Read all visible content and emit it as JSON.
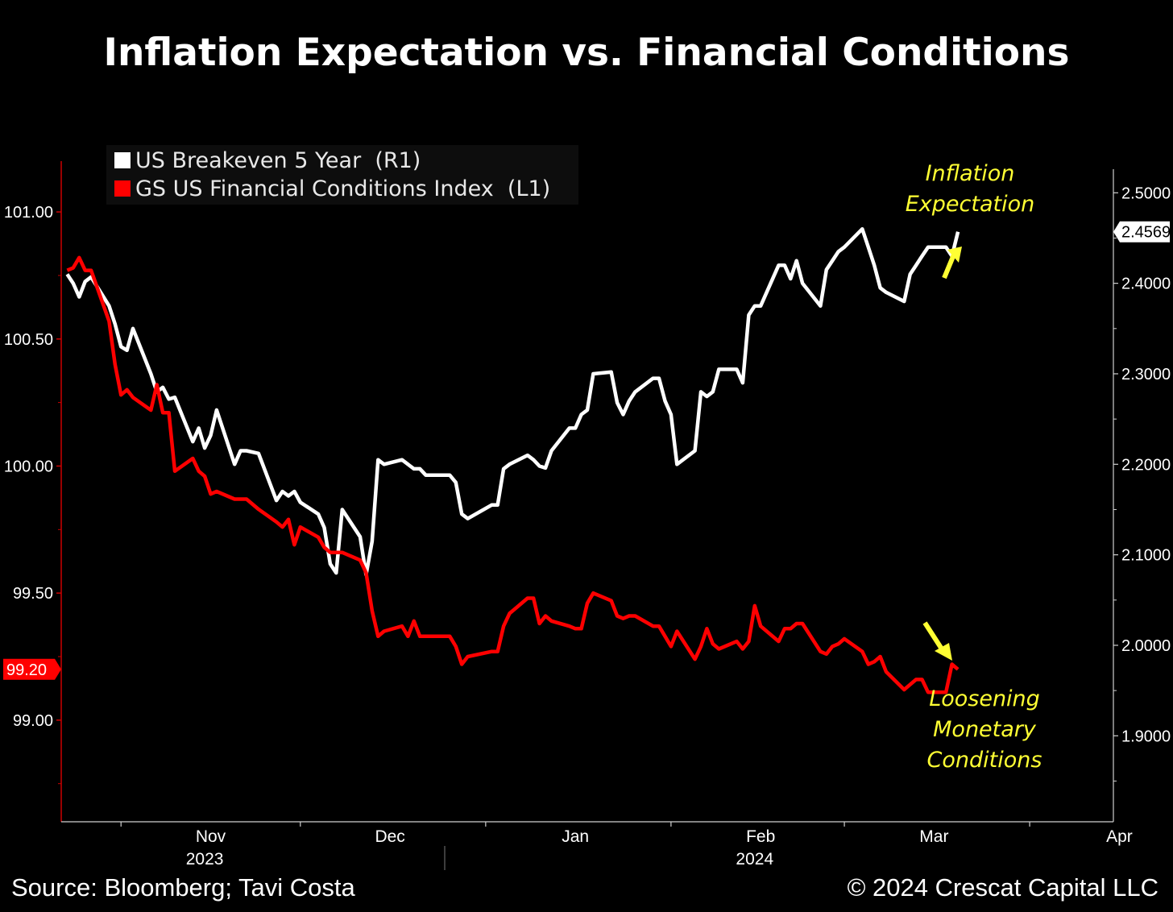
{
  "title": "Inflation Expectation vs. Financial Conditions",
  "footer": {
    "source": "Source: Bloomberg; Tavi Costa",
    "copyright": "© 2024 Crescat Capital LLC"
  },
  "annotations": {
    "inflation_line1": "Inflation",
    "inflation_line2": "Expectation",
    "loosening_line1": "Loosening",
    "loosening_line2": "Monetary",
    "loosening_line3": "Conditions"
  },
  "colors": {
    "background": "#000000",
    "breakeven": "#ffffff",
    "fci": "#ff0000",
    "annotation": "#ffff33",
    "axis": "#cc0000"
  },
  "chart_data": {
    "type": "line",
    "title": "Inflation Expectation vs. Financial Conditions",
    "x_range": [
      "2023-10-22",
      "2024-04-15"
    ],
    "x_month_ticks": [
      {
        "label": "Nov",
        "date": "2023-11-01"
      },
      {
        "label": "Dec",
        "date": "2023-12-01"
      },
      {
        "label": "Jan",
        "date": "2024-01-01"
      },
      {
        "label": "Feb",
        "date": "2024-02-01"
      },
      {
        "label": "Mar",
        "date": "2024-03-01"
      },
      {
        "label": "Apr",
        "date": "2024-04-01"
      }
    ],
    "x_year_labels": [
      {
        "label": "2023",
        "date": "2023-11-15"
      },
      {
        "label": "2024",
        "date": "2024-02-15"
      }
    ],
    "left_axis": {
      "ylim": [
        98.6,
        101.2
      ],
      "ticks": [
        "101.00",
        "100.50",
        "100.00",
        "99.50",
        "99.00"
      ],
      "last_value_label": "99.20"
    },
    "right_axis": {
      "ylim": [
        1.805,
        2.535
      ],
      "ticks": [
        "2.5000",
        "2.4000",
        "2.3000",
        "2.2000",
        "2.1000",
        "2.0000",
        "1.9000"
      ],
      "last_value_label": "2.4569"
    },
    "legend_placement": "top-left",
    "series": [
      {
        "name": "US Breakeven 5 Year  (R1)",
        "axis": "right",
        "color": "#ffffff",
        "points": [
          [
            "2023-10-23",
            2.41
          ],
          [
            "2023-10-24",
            2.4
          ],
          [
            "2023-10-25",
            2.385
          ],
          [
            "2023-10-26",
            2.402
          ],
          [
            "2023-10-27",
            2.407
          ],
          [
            "2023-10-30",
            2.375
          ],
          [
            "2023-10-31",
            2.355
          ],
          [
            "2023-11-01",
            2.33
          ],
          [
            "2023-11-02",
            2.326
          ],
          [
            "2023-11-03",
            2.35
          ],
          [
            "2023-11-06",
            2.3
          ],
          [
            "2023-11-07",
            2.28
          ],
          [
            "2023-11-08",
            2.285
          ],
          [
            "2023-11-09",
            2.272
          ],
          [
            "2023-11-10",
            2.274
          ],
          [
            "2023-11-13",
            2.225
          ],
          [
            "2023-11-14",
            2.24
          ],
          [
            "2023-11-15",
            2.218
          ],
          [
            "2023-11-16",
            2.232
          ],
          [
            "2023-11-17",
            2.26
          ],
          [
            "2023-11-20",
            2.2
          ],
          [
            "2023-11-21",
            2.215
          ],
          [
            "2023-11-22",
            2.215
          ],
          [
            "2023-11-24",
            2.212
          ],
          [
            "2023-11-27",
            2.16
          ],
          [
            "2023-11-28",
            2.17
          ],
          [
            "2023-11-29",
            2.165
          ],
          [
            "2023-11-30",
            2.17
          ],
          [
            "2023-12-01",
            2.158
          ],
          [
            "2023-12-04",
            2.145
          ],
          [
            "2023-12-05",
            2.13
          ],
          [
            "2023-12-06",
            2.09
          ],
          [
            "2023-12-07",
            2.08
          ],
          [
            "2023-12-08",
            2.15
          ],
          [
            "2023-12-11",
            2.12
          ],
          [
            "2023-12-12",
            2.078
          ],
          [
            "2023-12-13",
            2.115
          ],
          [
            "2023-12-14",
            2.205
          ],
          [
            "2023-12-15",
            2.2
          ],
          [
            "2023-12-18",
            2.205
          ],
          [
            "2023-12-19",
            2.2
          ],
          [
            "2023-12-20",
            2.195
          ],
          [
            "2023-12-21",
            2.195
          ],
          [
            "2023-12-22",
            2.188
          ],
          [
            "2023-12-26",
            2.188
          ],
          [
            "2023-12-27",
            2.18
          ],
          [
            "2023-12-28",
            2.145
          ],
          [
            "2023-12-29",
            2.14
          ],
          [
            "2024-01-02",
            2.155
          ],
          [
            "2024-01-03",
            2.155
          ],
          [
            "2024-01-04",
            2.195
          ],
          [
            "2024-01-05",
            2.2
          ],
          [
            "2024-01-08",
            2.21
          ],
          [
            "2024-01-09",
            2.205
          ],
          [
            "2024-01-10",
            2.198
          ],
          [
            "2024-01-11",
            2.196
          ],
          [
            "2024-01-12",
            2.215
          ],
          [
            "2024-01-15",
            2.24
          ],
          [
            "2024-01-16",
            2.24
          ],
          [
            "2024-01-17",
            2.255
          ],
          [
            "2024-01-18",
            2.26
          ],
          [
            "2024-01-19",
            2.3
          ],
          [
            "2024-01-22",
            2.302
          ],
          [
            "2024-01-23",
            2.268
          ],
          [
            "2024-01-24",
            2.255
          ],
          [
            "2024-01-25",
            2.27
          ],
          [
            "2024-01-26",
            2.28
          ],
          [
            "2024-01-29",
            2.295
          ],
          [
            "2024-01-30",
            2.295
          ],
          [
            "2024-01-31",
            2.27
          ],
          [
            "2024-02-01",
            2.255
          ],
          [
            "2024-02-02",
            2.2
          ],
          [
            "2024-02-05",
            2.215
          ],
          [
            "2024-02-06",
            2.28
          ],
          [
            "2024-02-07",
            2.275
          ],
          [
            "2024-02-08",
            2.28
          ],
          [
            "2024-02-09",
            2.305
          ],
          [
            "2024-02-12",
            2.305
          ],
          [
            "2024-02-13",
            2.29
          ],
          [
            "2024-02-14",
            2.365
          ],
          [
            "2024-02-15",
            2.375
          ],
          [
            "2024-02-16",
            2.375
          ],
          [
            "2024-02-19",
            2.42
          ],
          [
            "2024-02-20",
            2.42
          ],
          [
            "2024-02-21",
            2.405
          ],
          [
            "2024-02-22",
            2.425
          ],
          [
            "2024-02-23",
            2.4
          ],
          [
            "2024-02-26",
            2.375
          ],
          [
            "2024-02-27",
            2.415
          ],
          [
            "2024-02-28",
            2.425
          ],
          [
            "2024-02-29",
            2.435
          ],
          [
            "2024-03-01",
            2.44
          ],
          [
            "2024-03-04",
            2.46
          ],
          [
            "2024-03-05",
            2.44
          ],
          [
            "2024-03-06",
            2.42
          ],
          [
            "2024-03-07",
            2.395
          ],
          [
            "2024-03-08",
            2.39
          ],
          [
            "2024-03-11",
            2.38
          ],
          [
            "2024-03-12",
            2.41
          ],
          [
            "2024-03-13",
            2.42
          ],
          [
            "2024-03-14",
            2.43
          ],
          [
            "2024-03-15",
            2.44
          ],
          [
            "2024-03-18",
            2.44
          ],
          [
            "2024-03-19",
            2.43
          ],
          [
            "2024-03-20",
            2.4569
          ]
        ]
      },
      {
        "name": "GS US Financial Conditions Index  (L1)",
        "axis": "left",
        "color": "#ff0000",
        "points": [
          [
            "2023-10-23",
            100.77
          ],
          [
            "2023-10-24",
            100.78
          ],
          [
            "2023-10-25",
            100.82
          ],
          [
            "2023-10-26",
            100.77
          ],
          [
            "2023-10-27",
            100.77
          ],
          [
            "2023-10-30",
            100.57
          ],
          [
            "2023-10-31",
            100.4
          ],
          [
            "2023-11-01",
            100.28
          ],
          [
            "2023-11-02",
            100.3
          ],
          [
            "2023-11-03",
            100.27
          ],
          [
            "2023-11-06",
            100.22
          ],
          [
            "2023-11-07",
            100.32
          ],
          [
            "2023-11-08",
            100.21
          ],
          [
            "2023-11-09",
            100.21
          ],
          [
            "2023-11-10",
            99.98
          ],
          [
            "2023-11-13",
            100.03
          ],
          [
            "2023-11-14",
            99.98
          ],
          [
            "2023-11-15",
            99.96
          ],
          [
            "2023-11-16",
            99.89
          ],
          [
            "2023-11-17",
            99.9
          ],
          [
            "2023-11-20",
            99.87
          ],
          [
            "2023-11-21",
            99.87
          ],
          [
            "2023-11-22",
            99.87
          ],
          [
            "2023-11-24",
            99.83
          ],
          [
            "2023-11-27",
            99.78
          ],
          [
            "2023-11-28",
            99.76
          ],
          [
            "2023-11-29",
            99.79
          ],
          [
            "2023-11-30",
            99.69
          ],
          [
            "2023-12-01",
            99.76
          ],
          [
            "2023-12-04",
            99.72
          ],
          [
            "2023-12-05",
            99.68
          ],
          [
            "2023-12-06",
            99.66
          ],
          [
            "2023-12-07",
            99.66
          ],
          [
            "2023-12-08",
            99.66
          ],
          [
            "2023-12-11",
            99.63
          ],
          [
            "2023-12-12",
            99.58
          ],
          [
            "2023-12-13",
            99.43
          ],
          [
            "2023-12-14",
            99.33
          ],
          [
            "2023-12-15",
            99.35
          ],
          [
            "2023-12-18",
            99.37
          ],
          [
            "2023-12-19",
            99.33
          ],
          [
            "2023-12-20",
            99.39
          ],
          [
            "2023-12-21",
            99.33
          ],
          [
            "2023-12-22",
            99.33
          ],
          [
            "2023-12-26",
            99.33
          ],
          [
            "2023-12-27",
            99.29
          ],
          [
            "2023-12-28",
            99.22
          ],
          [
            "2023-12-29",
            99.25
          ],
          [
            "2024-01-02",
            99.27
          ],
          [
            "2024-01-03",
            99.27
          ],
          [
            "2024-01-04",
            99.37
          ],
          [
            "2024-01-05",
            99.42
          ],
          [
            "2024-01-08",
            99.48
          ],
          [
            "2024-01-09",
            99.48
          ],
          [
            "2024-01-10",
            99.38
          ],
          [
            "2024-01-11",
            99.41
          ],
          [
            "2024-01-12",
            99.39
          ],
          [
            "2024-01-15",
            99.37
          ],
          [
            "2024-01-16",
            99.36
          ],
          [
            "2024-01-17",
            99.36
          ],
          [
            "2024-01-18",
            99.46
          ],
          [
            "2024-01-19",
            99.5
          ],
          [
            "2024-01-22",
            99.47
          ],
          [
            "2024-01-23",
            99.41
          ],
          [
            "2024-01-24",
            99.4
          ],
          [
            "2024-01-25",
            99.41
          ],
          [
            "2024-01-26",
            99.41
          ],
          [
            "2024-01-29",
            99.37
          ],
          [
            "2024-01-30",
            99.37
          ],
          [
            "2024-01-31",
            99.33
          ],
          [
            "2024-02-01",
            99.29
          ],
          [
            "2024-02-02",
            99.35
          ],
          [
            "2024-02-05",
            99.24
          ],
          [
            "2024-02-06",
            99.29
          ],
          [
            "2024-02-07",
            99.36
          ],
          [
            "2024-02-08",
            99.3
          ],
          [
            "2024-02-09",
            99.28
          ],
          [
            "2024-02-12",
            99.31
          ],
          [
            "2024-02-13",
            99.28
          ],
          [
            "2024-02-14",
            99.31
          ],
          [
            "2024-02-15",
            99.45
          ],
          [
            "2024-02-16",
            99.37
          ],
          [
            "2024-02-19",
            99.31
          ],
          [
            "2024-02-20",
            99.36
          ],
          [
            "2024-02-21",
            99.36
          ],
          [
            "2024-02-22",
            99.38
          ],
          [
            "2024-02-23",
            99.38
          ],
          [
            "2024-02-26",
            99.27
          ],
          [
            "2024-02-27",
            99.26
          ],
          [
            "2024-02-28",
            99.29
          ],
          [
            "2024-02-29",
            99.3
          ],
          [
            "2024-03-01",
            99.32
          ],
          [
            "2024-03-04",
            99.27
          ],
          [
            "2024-03-05",
            99.22
          ],
          [
            "2024-03-06",
            99.23
          ],
          [
            "2024-03-07",
            99.25
          ],
          [
            "2024-03-08",
            99.19
          ],
          [
            "2024-03-11",
            99.12
          ],
          [
            "2024-03-12",
            99.14
          ],
          [
            "2024-03-13",
            99.16
          ],
          [
            "2024-03-14",
            99.16
          ],
          [
            "2024-03-15",
            99.11
          ],
          [
            "2024-03-18",
            99.11
          ],
          [
            "2024-03-19",
            99.22
          ],
          [
            "2024-03-20",
            99.2
          ]
        ]
      }
    ]
  }
}
